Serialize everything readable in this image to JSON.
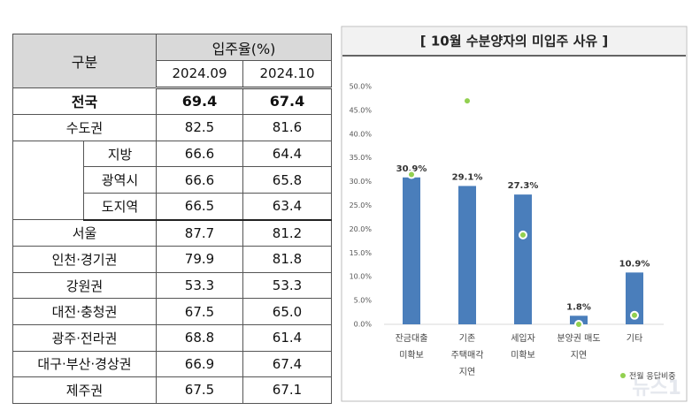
{
  "table": {
    "header": {
      "group": "구분",
      "rate": "입주율(%)",
      "cols": [
        "2024.09",
        "2024.10"
      ]
    },
    "rows": [
      [
        "전국",
        "69.4",
        "67.4"
      ],
      [
        "수도권",
        "82.5",
        "81.6"
      ],
      [
        "지방",
        "66.6",
        "64.4"
      ],
      [
        "광역시",
        "66.6",
        "65.8"
      ],
      [
        "도지역",
        "66.5",
        "63.4"
      ],
      [
        "서울",
        "87.7",
        "81.2"
      ],
      [
        "인천·경기권",
        "79.9",
        "81.8"
      ],
      [
        "강원권",
        "53.3",
        "53.3"
      ],
      [
        "대전·충청권",
        "67.5",
        "65.0"
      ],
      [
        "광주·전라권",
        "68.8",
        "61.4"
      ],
      [
        "대구·부산·경상권",
        "66.9",
        "67.4"
      ],
      [
        "제주권",
        "67.5",
        "67.1"
      ]
    ]
  },
  "chart_data": {
    "type": "bar",
    "title": "[ 10월 수분양자의 미입주 사유 ]",
    "categories": [
      [
        "잔금대출",
        "미확보"
      ],
      [
        "기존",
        "주택매각",
        "지연"
      ],
      [
        "세입자",
        "미확보"
      ],
      [
        "분양권 매도",
        "지연"
      ],
      [
        "기타"
      ]
    ],
    "series": [
      {
        "color": "#4a7ebb",
        "values": [
          30.9,
          29.1,
          27.3,
          1.8,
          10.9
        ],
        "value_labels": [
          "30.9%",
          "29.1%",
          "27.3%",
          "1.8%",
          "10.9%"
        ]
      },
      {
        "name": "전월 응답비중",
        "color": "#92d050",
        "values": [
          31.5,
          47.0,
          18.8,
          0.0,
          1.9
        ]
      }
    ],
    "ylim": [
      0,
      50
    ],
    "yticks": [
      {
        "value": 0,
        "label": "0.0%"
      },
      {
        "value": 5,
        "label": "5.0%"
      },
      {
        "value": 10,
        "label": "10.0%"
      },
      {
        "value": 15,
        "label": "15.0%"
      },
      {
        "value": 20,
        "label": "20.0%"
      },
      {
        "value": 25,
        "label": "25.0%"
      },
      {
        "value": 30,
        "label": "30.0%"
      },
      {
        "value": 35,
        "label": "35.0%"
      },
      {
        "value": 40,
        "label": "40.0%"
      },
      {
        "value": 45,
        "label": "45.0%"
      },
      {
        "value": 50,
        "label": "50.0%"
      }
    ],
    "watermark": "뉴스1"
  }
}
